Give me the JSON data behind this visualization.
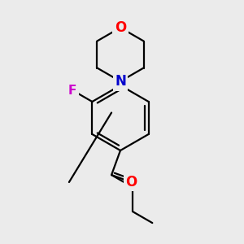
{
  "background_color": "#ebebeb",
  "bond_color": "#000000",
  "line_width": 1.6,
  "atom_colors": {
    "O": "#ff0000",
    "N": "#0000cc",
    "F": "#cc00cc",
    "C": "#000000"
  },
  "font_size": 12,
  "figsize": [
    3.0,
    3.0
  ],
  "dpi": 100
}
